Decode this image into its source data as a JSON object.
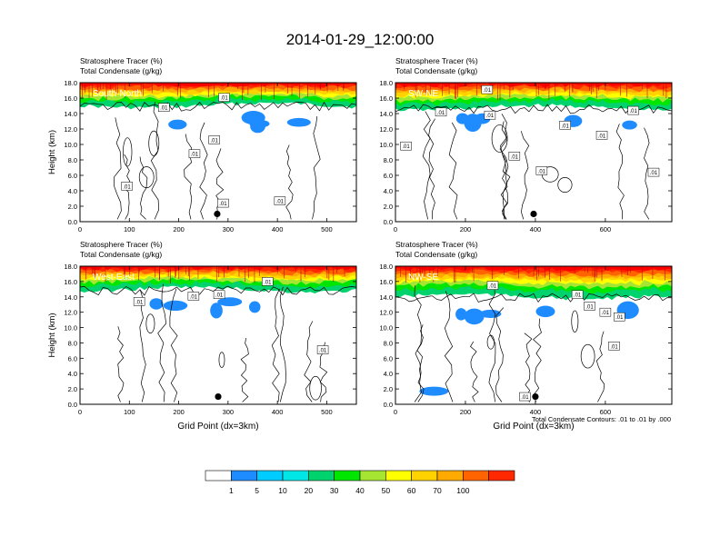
{
  "title": "2014-01-29_12:00:00",
  "colors": {
    "cb": [
      "#ffffff",
      "#1e8cff",
      "#00ccff",
      "#00e6e6",
      "#00d26e",
      "#00e600",
      "#a6e632",
      "#ffff00",
      "#ffd200",
      "#ffaa00",
      "#ff6400",
      "#ff2800",
      "#ff0000"
    ],
    "contour": "#000000",
    "marker": "#000000"
  },
  "colorbar": {
    "labels": [
      "1",
      "5",
      "10",
      "20",
      "30",
      "40",
      "50",
      "60",
      "70",
      "100"
    ]
  },
  "contour_note": "Total Condensate Contours: .01 to .01 by .000",
  "chart_data": [
    {
      "type": "contour",
      "panel": "South-North",
      "header_line1": "Stratosphere Tracer   (%)",
      "header_line2": "Total Condensate   (g/kg)",
      "ylabel": "Height (km)",
      "xlabel": "",
      "xlim": [
        0,
        560
      ],
      "ylim": [
        0,
        18
      ],
      "xticks": [
        0,
        100,
        200,
        300,
        400,
        500
      ],
      "yticks": [
        "0.0",
        "2.0",
        "4.0",
        "6.0",
        "8.0",
        "10.0",
        "12.0",
        "14.0",
        "16.0",
        "18.0"
      ],
      "tracer_top_km": 15.3,
      "marker": {
        "x": 278,
        "y": 1.0
      },
      "contour_labels": [
        {
          "text": ".01",
          "x": 170,
          "y": 14.8
        },
        {
          "text": ".01",
          "x": 292,
          "y": 16.1
        },
        {
          "text": ".01",
          "x": 272,
          "y": 10.6
        },
        {
          "text": ".01",
          "x": 232,
          "y": 8.8
        },
        {
          "text": ".01",
          "x": 95,
          "y": 4.6
        },
        {
          "text": ".01",
          "x": 290,
          "y": 2.4
        },
        {
          "text": ".01",
          "x": 405,
          "y": 2.7
        }
      ]
    },
    {
      "type": "contour",
      "panel": "SW-NE",
      "header_line1": "Stratosphere Tracer   (%)",
      "header_line2": "Total Condensate   (g/kg)",
      "ylabel": "",
      "xlabel": "",
      "xlim": [
        0,
        790
      ],
      "ylim": [
        0,
        18
      ],
      "xticks": [
        0,
        200,
        400,
        600
      ],
      "yticks": [
        "0.0",
        "2.0",
        "4.0",
        "6.0",
        "8.0",
        "10.0",
        "12.0",
        "14.0",
        "16.0",
        "18.0"
      ],
      "tracer_top_km": 15.0,
      "marker": {
        "x": 395,
        "y": 1.0
      },
      "contour_labels": [
        {
          "text": ".01",
          "x": 262,
          "y": 17.1
        },
        {
          "text": ".01",
          "x": 130,
          "y": 14.2
        },
        {
          "text": ".01",
          "x": 270,
          "y": 13.8
        },
        {
          "text": ".01",
          "x": 485,
          "y": 12.5
        },
        {
          "text": ".01",
          "x": 590,
          "y": 11.2
        },
        {
          "text": ".01",
          "x": 680,
          "y": 14.4
        },
        {
          "text": ".01",
          "x": 30,
          "y": 9.8
        },
        {
          "text": ".01",
          "x": 340,
          "y": 8.5
        },
        {
          "text": ".01",
          "x": 418,
          "y": 6.6
        },
        {
          "text": ".01",
          "x": 738,
          "y": 6.4
        }
      ]
    },
    {
      "type": "contour",
      "panel": "West-East",
      "header_line1": "Stratosphere Tracer   (%)",
      "header_line2": "Total Condensate   (g/kg)",
      "ylabel": "Height (km)",
      "xlabel": "Grid Point (dx=3km)",
      "xlim": [
        0,
        560
      ],
      "ylim": [
        0,
        18
      ],
      "xticks": [
        0,
        100,
        200,
        300,
        400,
        500
      ],
      "yticks": [
        "0.0",
        "2.0",
        "4.0",
        "6.0",
        "8.0",
        "10.0",
        "12.0",
        "14.0",
        "16.0",
        "18.0"
      ],
      "tracer_top_km": 15.2,
      "marker": {
        "x": 280,
        "y": 1.0
      },
      "contour_labels": [
        {
          "text": ".01",
          "x": 380,
          "y": 16.0
        },
        {
          "text": ".01",
          "x": 230,
          "y": 14.1
        },
        {
          "text": ".01",
          "x": 282,
          "y": 14.3
        },
        {
          "text": ".01",
          "x": 120,
          "y": 13.4
        },
        {
          "text": ".01",
          "x": 492,
          "y": 7.1
        }
      ]
    },
    {
      "type": "contour",
      "panel": "NW-SE",
      "header_line1": "Stratosphere Tracer   (%)",
      "header_line2": "Total Condensate   (g/kg)",
      "ylabel": "",
      "xlabel": "Grid Point (dx=3km)",
      "xlim": [
        0,
        790
      ],
      "ylim": [
        0,
        18
      ],
      "xticks": [
        0,
        200,
        400,
        600
      ],
      "yticks": [
        "0.0",
        "2.0",
        "4.0",
        "6.0",
        "8.0",
        "10.0",
        "12.0",
        "14.0",
        "16.0",
        "18.0"
      ],
      "tracer_top_km": 14.3,
      "marker": {
        "x": 400,
        "y": 1.0
      },
      "contour_labels": [
        {
          "text": ".01",
          "x": 278,
          "y": 15.5
        },
        {
          "text": ".01",
          "x": 520,
          "y": 14.3
        },
        {
          "text": ".01",
          "x": 555,
          "y": 12.8
        },
        {
          "text": ".01",
          "x": 600,
          "y": 12.0
        },
        {
          "text": ".01",
          "x": 640,
          "y": 11.4
        },
        {
          "text": ".01",
          "x": 625,
          "y": 7.6
        },
        {
          "text": ".01",
          "x": 370,
          "y": 1.0
        }
      ]
    }
  ]
}
